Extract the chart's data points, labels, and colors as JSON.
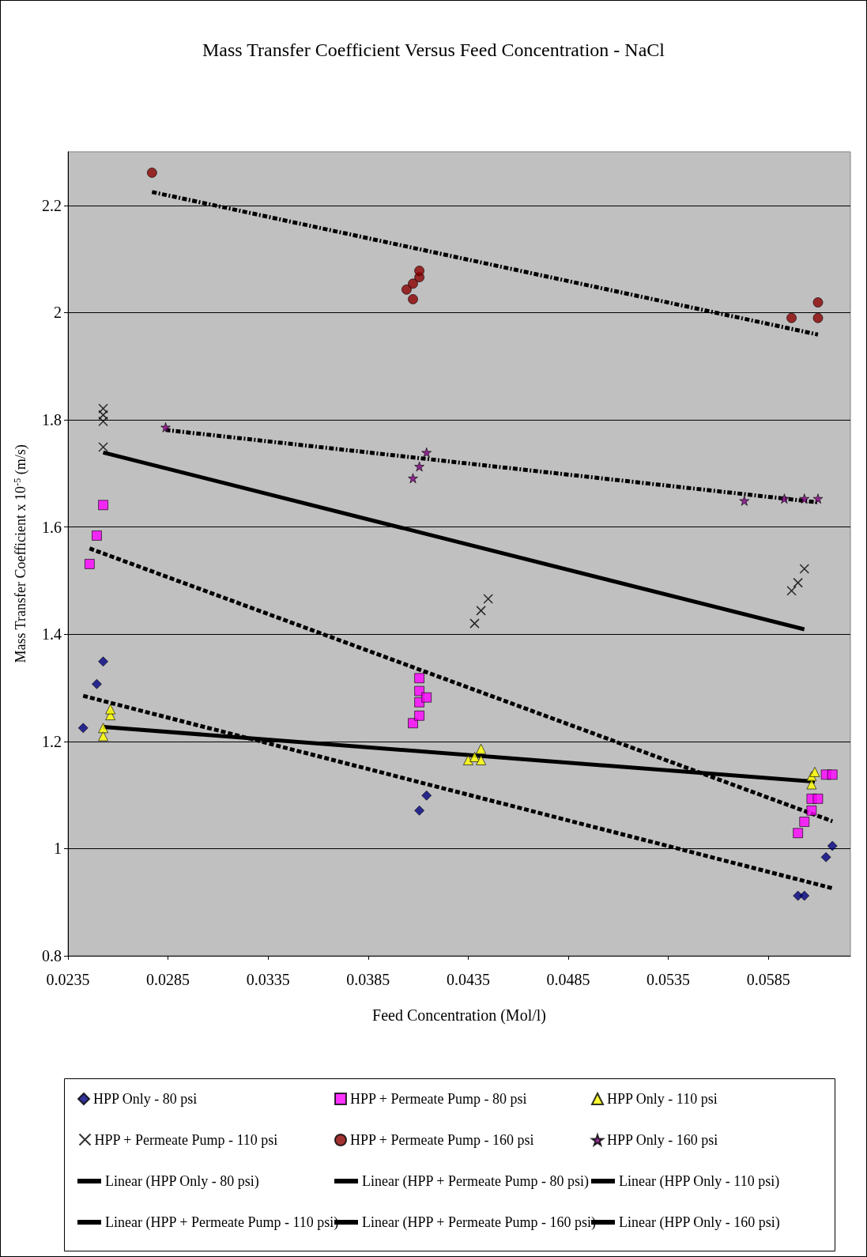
{
  "chart_data": {
    "type": "scatter",
    "title": "Mass Transfer Coefficient Versus Feed Concentration - NaCl",
    "xlabel": "Feed Concentration (Mol/l)",
    "ylabel": "Mass Transfer Coefficient x 10$^{-5}$ (m/s)",
    "xlim": [
      0.0235,
      0.0626
    ],
    "xticks": [
      0.0235,
      0.0285,
      0.0335,
      0.0385,
      0.0435,
      0.0485,
      0.0535,
      0.0585
    ],
    "ylim": [
      0.8,
      2.3
    ],
    "yticks": [
      0.8,
      1,
      1.2,
      1.4,
      1.6,
      1.8,
      2,
      2.2
    ],
    "grid": "y",
    "legend": "bottom",
    "series": [
      {
        "name": "HPP Only - 80 psi",
        "color": "#000080",
        "marker": "diamond",
        "x": [
          0.02426,
          0.02494,
          0.02526,
          0.04106,
          0.04142,
          0.05998,
          0.0603,
          0.06138,
          0.0617
        ],
        "values": [
          1.225,
          1.307,
          1.349,
          1.071,
          1.099,
          0.912,
          0.912,
          0.984,
          1.005
        ]
      },
      {
        "name": "HPP + Permeate Pump - 80 psi",
        "color": "#ff00ff",
        "marker": "square",
        "x": [
          0.02458,
          0.02494,
          0.02526,
          0.04074,
          0.04106,
          0.04106,
          0.04106,
          0.04106,
          0.04142,
          0.05998,
          0.0603,
          0.06066,
          0.06066,
          0.06098,
          0.06138,
          0.0617
        ],
        "values": [
          1.531,
          1.584,
          1.641,
          1.234,
          1.248,
          1.273,
          1.294,
          1.318,
          1.282,
          1.029,
          1.05,
          1.071,
          1.093,
          1.093,
          1.138,
          1.138
        ]
      },
      {
        "name": "HPP Only - 110 psi",
        "color": "#ffff00",
        "marker": "triangle",
        "x": [
          0.02526,
          0.02526,
          0.02562,
          0.02562,
          0.0435,
          0.04382,
          0.04414,
          0.04414,
          0.06066,
          0.06066,
          0.06082
        ],
        "values": [
          1.21,
          1.225,
          1.249,
          1.26,
          1.165,
          1.171,
          1.165,
          1.186,
          1.12,
          1.135,
          1.143
        ]
      },
      {
        "name": "HPP + Permeate Pump - 110 psi",
        "color": "#000000",
        "marker": "cross",
        "x": [
          0.02526,
          0.02526,
          0.02526,
          0.02526,
          0.04382,
          0.04414,
          0.0445,
          0.05966,
          0.05998,
          0.0603
        ],
        "values": [
          1.821,
          1.809,
          1.797,
          1.749,
          1.42,
          1.444,
          1.466,
          1.481,
          1.496,
          1.522
        ]
      },
      {
        "name": "HPP + Permeate Pump - 160 psi",
        "color": "#8b0000",
        "marker": "circle",
        "x": [
          0.0277,
          0.04042,
          0.04074,
          0.04074,
          0.04106,
          0.04106,
          0.05966,
          0.06098,
          0.06098
        ],
        "values": [
          2.261,
          2.043,
          2.054,
          2.025,
          2.066,
          2.078,
          1.99,
          2.019,
          1.99
        ]
      },
      {
        "name": "HPP Only - 160 psi",
        "color": "#800080",
        "marker": "star",
        "x": [
          0.02838,
          0.04074,
          0.04106,
          0.04142,
          0.0573,
          0.0593,
          0.0603,
          0.06098
        ],
        "values": [
          1.786,
          1.691,
          1.713,
          1.739,
          1.649,
          1.653,
          1.653,
          1.653
        ]
      },
      {
        "name": "Linear (HPP Only - 80 psi)",
        "type": "line",
        "color": "#000000",
        "marker": "none",
        "line_style": "dashed",
        "x": [
          0.02426,
          0.0617
        ],
        "values": [
          1.285,
          0.926
        ]
      },
      {
        "name": "Linear (HPP + Permeate Pump - 80 psi)",
        "type": "line",
        "color": "#000000",
        "marker": "none",
        "line_style": "dashed",
        "x": [
          0.02458,
          0.0617
        ],
        "values": [
          1.56,
          1.051
        ]
      },
      {
        "name": "Linear (HPP Only - 110 psi)",
        "type": "line",
        "color": "#000000",
        "marker": "none",
        "line_style": "solid",
        "x": [
          0.02526,
          0.06082
        ],
        "values": [
          1.227,
          1.125
        ]
      },
      {
        "name": "Linear (HPP + Permeate Pump - 110 psi)",
        "type": "line",
        "color": "#000000",
        "marker": "none",
        "line_style": "solid",
        "x": [
          0.02526,
          0.0603
        ],
        "values": [
          1.739,
          1.409
        ]
      },
      {
        "name": "Linear (HPP + Permeate Pump - 160 psi)",
        "type": "line",
        "color": "#000000",
        "marker": "none",
        "line_style": "dashdot",
        "x": [
          0.0277,
          0.06098
        ],
        "values": [
          2.225,
          1.959
        ]
      },
      {
        "name": "Linear (HPP Only - 160 psi)",
        "type": "line",
        "color": "#000000",
        "marker": "none",
        "line_style": "dashdot",
        "x": [
          0.02838,
          0.06098
        ],
        "values": [
          1.781,
          1.646
        ]
      }
    ]
  }
}
